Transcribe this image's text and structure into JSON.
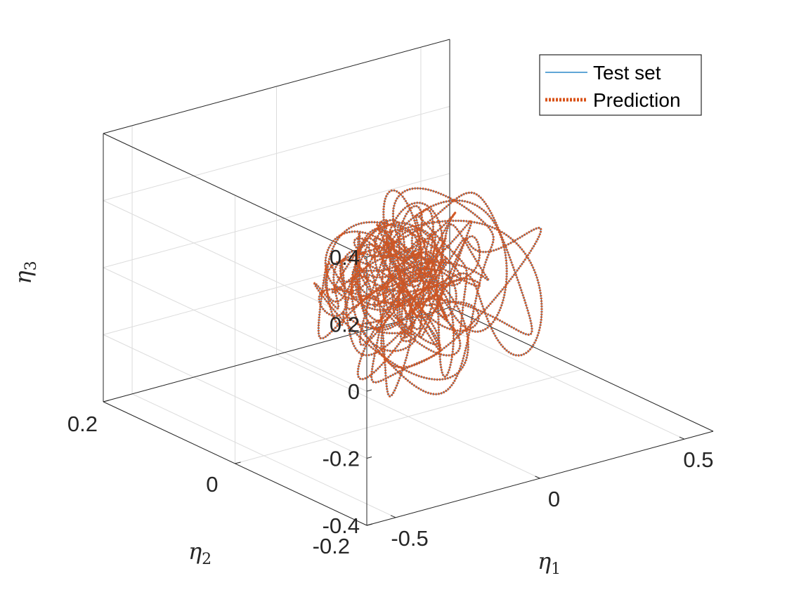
{
  "chart_data": {
    "type": "line",
    "dimensions": 3,
    "title": "",
    "axes": {
      "x": {
        "label_base": "η",
        "label_sub": "1",
        "lim": [
          -0.6,
          0.6
        ],
        "ticks": [
          -0.5,
          0,
          0.5
        ],
        "tick_labels": [
          "-0.5",
          "0",
          "0.5"
        ]
      },
      "y": {
        "label_base": "η",
        "label_sub": "2",
        "lim": [
          -0.2,
          0.2
        ],
        "ticks": [
          -0.2,
          0,
          0.2
        ],
        "tick_labels": [
          "-0.2",
          "0",
          "0.2"
        ]
      },
      "z": {
        "label_base": "η",
        "label_sub": "3",
        "lim": [
          -0.4,
          0.4
        ],
        "ticks": [
          -0.4,
          -0.2,
          0,
          0.2,
          0.4
        ],
        "tick_labels": [
          "-0.4",
          "-0.2",
          "0",
          "0.2",
          "0.4"
        ]
      }
    },
    "grid": true,
    "box": true,
    "legend": {
      "location": "top-right",
      "entries": [
        "Test set",
        "Prediction"
      ]
    },
    "series": [
      {
        "name": "Test set",
        "color": "#0072BD",
        "style": "solid",
        "parametric": {
          "t_range": [
            0,
            260
          ],
          "x": [
            [
              0.1,
              0.53,
              0.0
            ],
            [
              0.07,
              0.31,
              1.1
            ],
            [
              0.05,
              0.83,
              2.3
            ],
            [
              0.04,
              1.97,
              0.4
            ]
          ],
          "y": [
            [
              0.04,
              0.61,
              0.3
            ],
            [
              0.025,
              1.43,
              1.7
            ],
            [
              0.015,
              0.29,
              2.9
            ]
          ],
          "z": [
            [
              0.08,
              0.7,
              0.5
            ],
            [
              0.05,
              1.31,
              2.2
            ],
            [
              0.04,
              0.43,
              1.0
            ],
            [
              0.04,
              2.21,
              0.8
            ]
          ],
          "amplitude_growth": 0.8
        }
      },
      {
        "name": "Prediction",
        "color": "#D95319",
        "style": "dotted",
        "parametric": {
          "t_range": [
            0,
            260
          ],
          "x": [
            [
              0.1,
              0.53,
              0.0
            ],
            [
              0.07,
              0.31,
              1.1
            ],
            [
              0.05,
              0.83,
              2.3
            ],
            [
              0.04,
              1.97,
              0.4
            ]
          ],
          "y": [
            [
              0.04,
              0.61,
              0.3
            ],
            [
              0.025,
              1.43,
              1.7
            ],
            [
              0.015,
              0.29,
              2.9
            ]
          ],
          "z": [
            [
              0.08,
              0.7,
              0.5
            ],
            [
              0.05,
              1.31,
              2.2
            ],
            [
              0.04,
              0.43,
              1.0
            ],
            [
              0.04,
              2.21,
              0.8
            ]
          ],
          "amplitude_growth": 0.8
        }
      }
    ]
  }
}
